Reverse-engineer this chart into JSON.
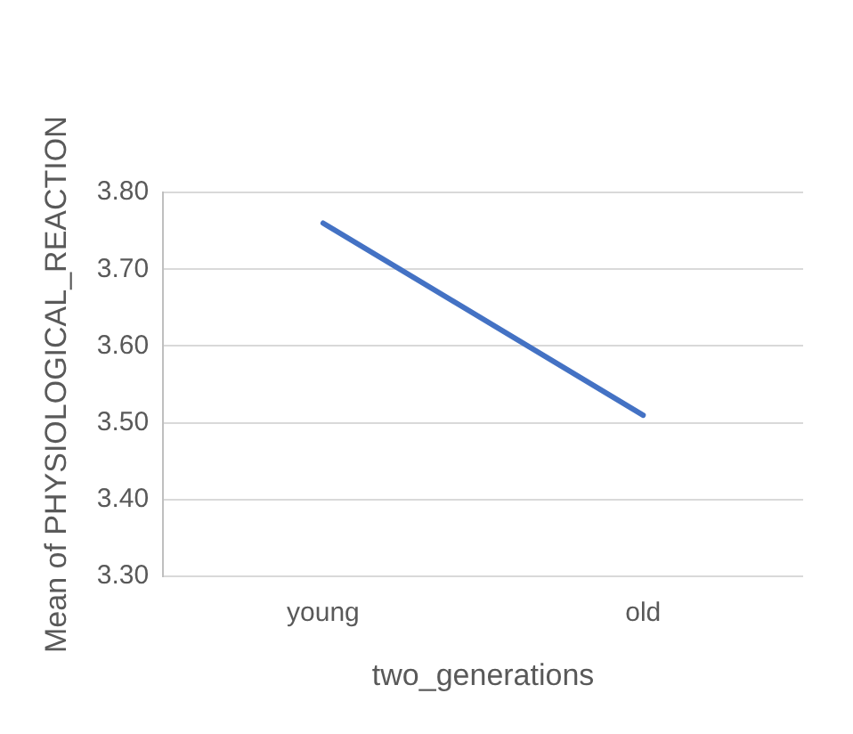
{
  "chart_data": {
    "type": "line",
    "xlabel": "two_generations",
    "ylabel": "Mean of PHYSIOLOGICAL_REACTION",
    "categories": [
      "young",
      "old"
    ],
    "series": [
      {
        "color": "#4472c4",
        "values": [
          3.76,
          3.51
        ]
      }
    ],
    "ylim": [
      3.3,
      3.8
    ],
    "yticks": [
      {
        "value": 3.3,
        "label": "3.30"
      },
      {
        "value": 3.4,
        "label": "3.40"
      },
      {
        "value": 3.5,
        "label": "3.50"
      },
      {
        "value": 3.6,
        "label": "3.60"
      },
      {
        "value": 3.7,
        "label": "3.70"
      },
      {
        "value": 3.8,
        "label": "3.80"
      }
    ],
    "grid": "y",
    "legend": false,
    "marker": "none",
    "line_style": "solid"
  }
}
